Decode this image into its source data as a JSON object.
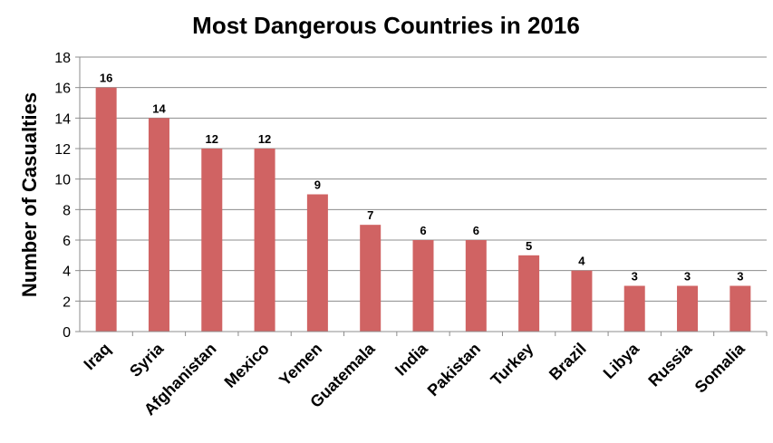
{
  "chart_data": {
    "type": "bar",
    "title": "Most Dangerous Countries in 2016",
    "ylabel": "Number of Casualties",
    "xlabel": "",
    "categories": [
      "Iraq",
      "Syria",
      "Afghanistan",
      "Mexico",
      "Yemen",
      "Guatemala",
      "India",
      "Pakistan",
      "Turkey",
      "Brazil",
      "Libya",
      "Russia",
      "Somalia"
    ],
    "values": [
      16,
      14,
      12,
      12,
      9,
      7,
      6,
      6,
      5,
      4,
      3,
      3,
      3
    ],
    "ylim": [
      0,
      18
    ],
    "yticks": [
      0,
      2,
      4,
      6,
      8,
      10,
      12,
      14,
      16,
      18
    ],
    "grid": true,
    "legend": "none",
    "bar_color": "#d06363",
    "data_labels": true
  }
}
